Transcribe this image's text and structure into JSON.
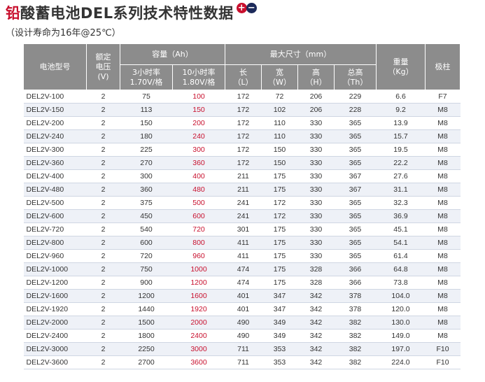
{
  "title": {
    "first_char": "铅",
    "rest": "酸蓄电池DEL系列技术特性数据"
  },
  "badge": {
    "plus": "+",
    "minus": "−"
  },
  "subtitle": "（设计寿命为16年@25℃）",
  "header": {
    "model": "电池型号",
    "voltage": "额定\n电压\n(V)",
    "capacity": "容量（Ah）",
    "cap3_a": "3小时率",
    "cap3_b": "1.70V/格",
    "cap10_a": "10小时率",
    "cap10_b": "1.80V/格",
    "dims": "最大尺寸（mm）",
    "len_a": "长",
    "len_b": "（L）",
    "wid_a": "宽",
    "wid_b": "（W）",
    "hei_a": "高",
    "hei_b": "（H）",
    "tot_a": "总高",
    "tot_b": "（Th）",
    "weight_a": "重量",
    "weight_b": "（Kg）",
    "terminal": "极柱"
  },
  "rows": [
    [
      "DEL2V-100",
      "2",
      "75",
      "100",
      "172",
      "72",
      "206",
      "229",
      "6.6",
      "F7"
    ],
    [
      "DEL2V-150",
      "2",
      "113",
      "150",
      "172",
      "102",
      "206",
      "228",
      "9.2",
      "M8"
    ],
    [
      "DEL2V-200",
      "2",
      "150",
      "200",
      "172",
      "110",
      "330",
      "365",
      "13.9",
      "M8"
    ],
    [
      "DEL2V-240",
      "2",
      "180",
      "240",
      "172",
      "110",
      "330",
      "365",
      "15.7",
      "M8"
    ],
    [
      "DEL2V-300",
      "2",
      "225",
      "300",
      "172",
      "150",
      "330",
      "365",
      "19.5",
      "M8"
    ],
    [
      "DEL2V-360",
      "2",
      "270",
      "360",
      "172",
      "150",
      "330",
      "365",
      "22.2",
      "M8"
    ],
    [
      "DEL2V-400",
      "2",
      "300",
      "400",
      "211",
      "175",
      "330",
      "367",
      "27.6",
      "M8"
    ],
    [
      "DEL2V-480",
      "2",
      "360",
      "480",
      "211",
      "175",
      "330",
      "367",
      "31.1",
      "M8"
    ],
    [
      "DEL2V-500",
      "2",
      "375",
      "500",
      "241",
      "172",
      "330",
      "365",
      "32.3",
      "M8"
    ],
    [
      "DEL2V-600",
      "2",
      "450",
      "600",
      "241",
      "172",
      "330",
      "365",
      "36.9",
      "M8"
    ],
    [
      "DEL2V-720",
      "2",
      "540",
      "720",
      "301",
      "175",
      "330",
      "365",
      "45.1",
      "M8"
    ],
    [
      "DEL2V-800",
      "2",
      "600",
      "800",
      "411",
      "175",
      "330",
      "365",
      "54.1",
      "M8"
    ],
    [
      "DEL2V-960",
      "2",
      "720",
      "960",
      "411",
      "175",
      "330",
      "365",
      "61.4",
      "M8"
    ],
    [
      "DEL2V-1000",
      "2",
      "750",
      "1000",
      "474",
      "175",
      "328",
      "366",
      "64.8",
      "M8"
    ],
    [
      "DEL2V-1200",
      "2",
      "900",
      "1200",
      "474",
      "175",
      "328",
      "366",
      "73.8",
      "M8"
    ],
    [
      "DEL2V-1600",
      "2",
      "1200",
      "1600",
      "401",
      "347",
      "342",
      "378",
      "104.0",
      "M8"
    ],
    [
      "DEL2V-1920",
      "2",
      "1440",
      "1920",
      "401",
      "347",
      "342",
      "378",
      "120.0",
      "M8"
    ],
    [
      "DEL2V-2000",
      "2",
      "1500",
      "2000",
      "490",
      "349",
      "342",
      "382",
      "130.0",
      "M8"
    ],
    [
      "DEL2V-2400",
      "2",
      "1800",
      "2400",
      "490",
      "349",
      "342",
      "382",
      "149.0",
      "M8"
    ],
    [
      "DEL2V-3000",
      "2",
      "2250",
      "3000",
      "711",
      "353",
      "342",
      "382",
      "197.0",
      "F10"
    ],
    [
      "DEL2V-3600",
      "2",
      "2700",
      "3600",
      "711",
      "353",
      "342",
      "382",
      "224.0",
      "F10"
    ]
  ],
  "colors": {
    "accent_red": "#c8102e",
    "header_grey": "#8c8c8c",
    "badge_navy": "#1c2a5a",
    "row_alt": "#eef1f7"
  }
}
